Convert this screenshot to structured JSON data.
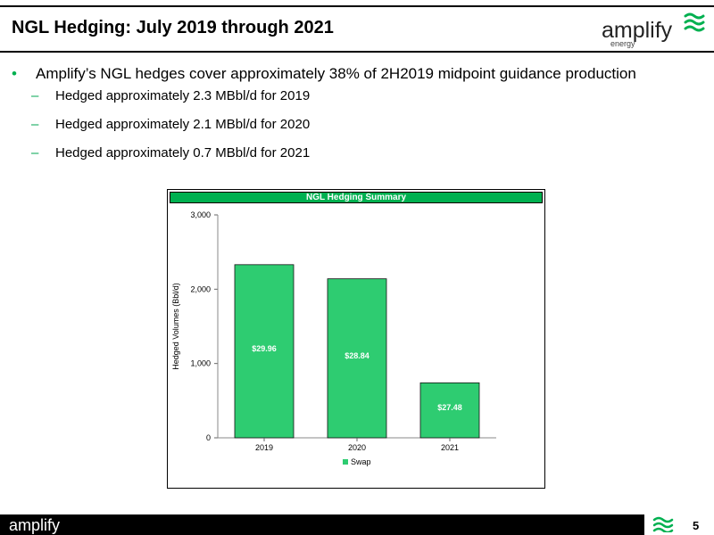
{
  "slide": {
    "title": "NGL Hedging: July 2019 through 2021",
    "page_number": "5"
  },
  "logo": {
    "brand": "amplify",
    "sub": "energy",
    "footer_brand": "amplify",
    "icon": "wave-stripes-icon",
    "accent_color": "#00b050"
  },
  "bullets": {
    "main": "Amplify’s NGL hedges cover approximately 38% of 2H2019 midpoint guidance production",
    "sub": [
      "Hedged approximately 2.3 MBbl/d for 2019",
      "Hedged approximately 2.1 MBbl/d for 2020",
      "Hedged approximately 0.7 MBbl/d for 2021"
    ],
    "bullet_symbol": "•",
    "dash_symbol": "–"
  },
  "chart_data": {
    "type": "bar",
    "title": "NGL Hedging Summary",
    "categories": [
      "2019",
      "2020",
      "2021"
    ],
    "series": [
      {
        "name": "Swap",
        "values": [
          2330,
          2140,
          740
        ],
        "labels": [
          "$29.96",
          "$28.84",
          "$27.48"
        ],
        "color": "#2ecc71"
      }
    ],
    "ylabel": "Hedged Volumes (Bbl/d)",
    "xlabel": "",
    "ylim": [
      0,
      3000
    ],
    "yticks": [
      0,
      1000,
      2000,
      3000
    ],
    "ytick_labels": [
      "0",
      "1,000",
      "2,000",
      "3,000"
    ],
    "grid": false,
    "legend_position": "bottom"
  }
}
